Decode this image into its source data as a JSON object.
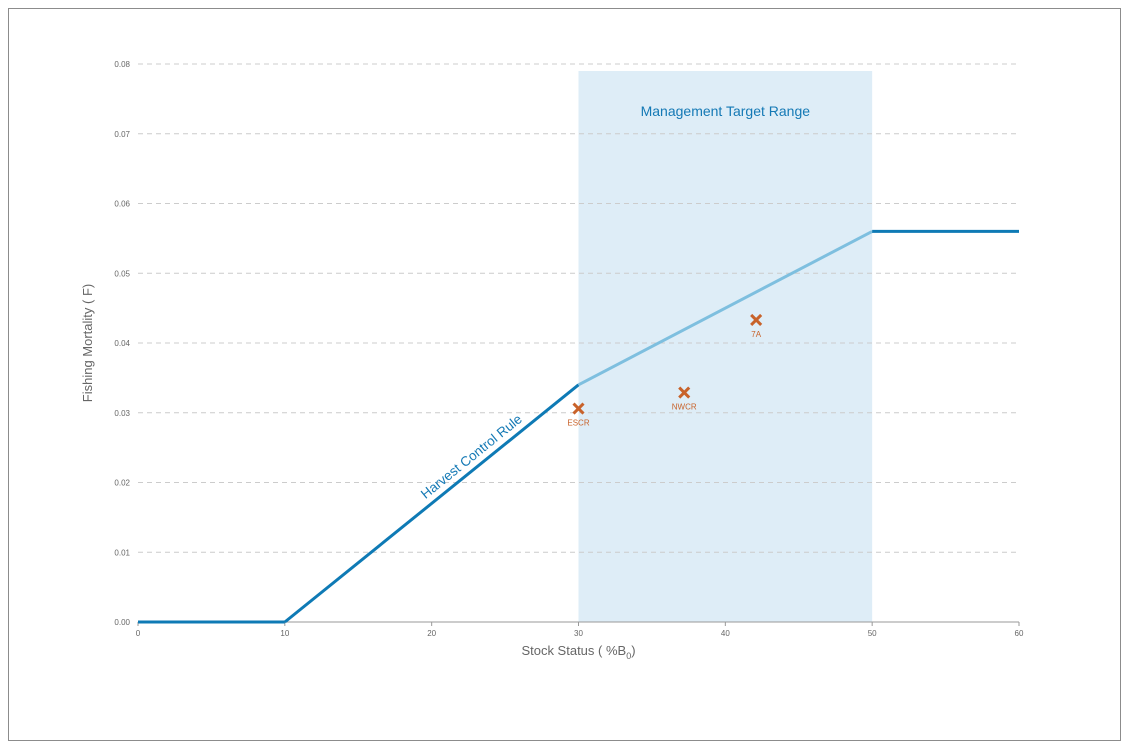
{
  "colors": {
    "rule_dark": "#0e7ab5",
    "rule_light": "#7ebfdf",
    "target_band": "#deedf7",
    "marker": "#c8622a",
    "grid": "#cccccc",
    "axis": "#999999",
    "text": "#666666",
    "label_blue": "#1479b5"
  },
  "chart_data": {
    "type": "line",
    "xlabel_main": "Stock Status ( %B",
    "xlabel_sub": "0",
    "xlabel_end": ")",
    "ylabel": "Fishing Mortality ( F)",
    "xlim": [
      0,
      60
    ],
    "ylim": [
      0,
      0.08
    ],
    "x_ticks": [
      "0",
      "10",
      "20",
      "30",
      "40",
      "50",
      "60"
    ],
    "y_ticks": [
      "0.00",
      "0.01",
      "0.02",
      "0.03",
      "0.04",
      "0.05",
      "0.06",
      "0.07",
      "0.08"
    ],
    "grid": "horizontal dashed",
    "target_range": {
      "label": "Management Target Range",
      "x_from": 30,
      "x_to": 50
    },
    "harvest_control_rule": {
      "label": "Harvest Control Rule",
      "segments": [
        {
          "x": [
            0,
            10
          ],
          "y": [
            0.0,
            0.0
          ],
          "style": "dark"
        },
        {
          "x": [
            10,
            30
          ],
          "y": [
            0.0,
            0.034
          ],
          "style": "dark"
        },
        {
          "x": [
            30,
            50
          ],
          "y": [
            0.034,
            0.056
          ],
          "style": "light"
        },
        {
          "x": [
            50,
            60
          ],
          "y": [
            0.056,
            0.056
          ],
          "style": "dark"
        }
      ]
    },
    "points": [
      {
        "label": "ESCR",
        "x": 30.0,
        "y": 0.0306
      },
      {
        "label": "NWCR",
        "x": 37.2,
        "y": 0.0329
      },
      {
        "label": "7A",
        "x": 42.1,
        "y": 0.0433
      }
    ]
  }
}
